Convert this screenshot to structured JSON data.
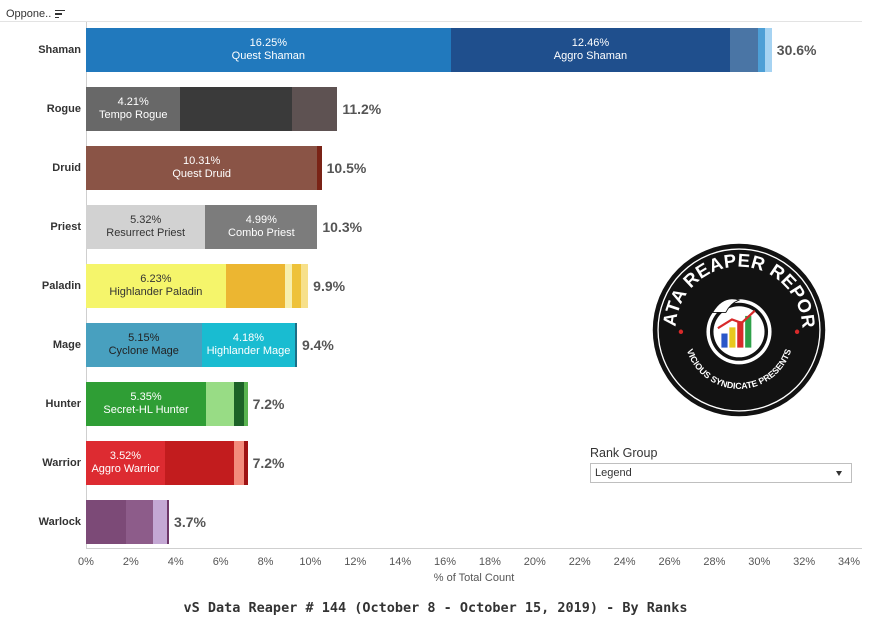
{
  "header": {
    "field_label": "Oppone..",
    "sort_icon": "sort-icon"
  },
  "chart_data": {
    "type": "bar",
    "orientation": "horizontal",
    "stacked": true,
    "xlabel": "% of Total Count",
    "xlim": [
      0,
      34
    ],
    "xticks": [
      "0%",
      "2%",
      "4%",
      "6%",
      "8%",
      "10%",
      "12%",
      "14%",
      "16%",
      "18%",
      "20%",
      "22%",
      "24%",
      "26%",
      "28%",
      "30%",
      "32%",
      "34%"
    ],
    "categories": [
      {
        "name": "Shaman",
        "total_label": "30.6%",
        "segments": [
          {
            "value": 16.25,
            "value_label": "16.25%",
            "archetype": "Quest Shaman",
            "color": "#2179bd",
            "text_color": "#ffffff"
          },
          {
            "value": 12.46,
            "value_label": "12.46%",
            "archetype": "Aggro Shaman",
            "color": "#1f4f8d",
            "text_color": "#ffffff"
          },
          {
            "value": 1.25,
            "color": "#4a75a5"
          },
          {
            "value": 0.3,
            "color": "#4d9fd6"
          },
          {
            "value": 0.3,
            "color": "#a6d3f2"
          }
        ]
      },
      {
        "name": "Rogue",
        "total_label": "11.2%",
        "segments": [
          {
            "value": 4.21,
            "value_label": "4.21%",
            "archetype": "Tempo Rogue",
            "color": "#686868",
            "text_color": "#ffffff"
          },
          {
            "value": 4.95,
            "color": "#3a3a3a"
          },
          {
            "value": 2.04,
            "color": "#5e5252"
          }
        ]
      },
      {
        "name": "Druid",
        "total_label": "10.5%",
        "segments": [
          {
            "value": 10.31,
            "value_label": "10.31%",
            "archetype": "Quest Druid",
            "color": "#8a5446",
            "text_color": "#ffffff"
          },
          {
            "value": 0.19,
            "color": "#7a2316"
          }
        ]
      },
      {
        "name": "Priest",
        "total_label": "10.3%",
        "segments": [
          {
            "value": 5.32,
            "value_label": "5.32%",
            "archetype": "Resurrect Priest",
            "color": "#d2d2d2",
            "text_color": "#333333"
          },
          {
            "value": 4.99,
            "value_label": "4.99%",
            "archetype": "Combo Priest",
            "color": "#7c7c7c",
            "text_color": "#ffffff"
          }
        ]
      },
      {
        "name": "Paladin",
        "total_label": "9.9%",
        "segments": [
          {
            "value": 6.23,
            "value_label": "6.23%",
            "archetype": "Highlander Paladin",
            "color": "#f5f56b",
            "text_color": "#333333"
          },
          {
            "value": 2.62,
            "color": "#ecb631"
          },
          {
            "value": 0.35,
            "color": "#f7efad"
          },
          {
            "value": 0.4,
            "color": "#eec239"
          },
          {
            "value": 0.3,
            "color": "#f7e08a"
          }
        ]
      },
      {
        "name": "Mage",
        "total_label": "9.4%",
        "segments": [
          {
            "value": 5.15,
            "value_label": "5.15%",
            "archetype": "Cyclone Mage",
            "color": "#48a0bf",
            "text_color": "#222222"
          },
          {
            "value": 4.18,
            "value_label": "4.18%",
            "archetype": "Highlander Mage",
            "color": "#19bcd1",
            "text_color": "#ffffff"
          },
          {
            "value": 0.07,
            "color": "#1c6e86"
          }
        ]
      },
      {
        "name": "Hunter",
        "total_label": "7.2%",
        "segments": [
          {
            "value": 5.35,
            "value_label": "5.35%",
            "archetype": "Secret-HL Hunter",
            "color": "#2f9e35",
            "text_color": "#ffffff"
          },
          {
            "value": 1.25,
            "color": "#98dc85"
          },
          {
            "value": 0.45,
            "color": "#1c6227"
          },
          {
            "value": 0.15,
            "color": "#59b350"
          }
        ]
      },
      {
        "name": "Warrior",
        "total_label": "7.2%",
        "segments": [
          {
            "value": 3.52,
            "value_label": "3.52%",
            "archetype": "Aggro Warrior",
            "color": "#dd2b31",
            "text_color": "#ffffff"
          },
          {
            "value": 3.08,
            "color": "#c21c1e"
          },
          {
            "value": 0.45,
            "color": "#f38b7c"
          },
          {
            "value": 0.15,
            "color": "#9e1213"
          }
        ]
      },
      {
        "name": "Warlock",
        "total_label": "3.7%",
        "segments": [
          {
            "value": 1.8,
            "color": "#7c4a77"
          },
          {
            "value": 1.2,
            "color": "#8d5c8a"
          },
          {
            "value": 0.6,
            "color": "#c4a8d4"
          },
          {
            "value": 0.1,
            "color": "#6d3768"
          }
        ]
      }
    ]
  },
  "logo": {
    "title": "DATA REAPER REPORT",
    "subtitle": "VICIOUS SYNDICATE PRESENTS",
    "icon": "data-reaper-logo"
  },
  "rank_group": {
    "title": "Rank Group",
    "selected": "Legend"
  },
  "footer": {
    "title": "vS Data Reaper #  144 (October 8 - October 15, 2019) - By Ranks"
  }
}
